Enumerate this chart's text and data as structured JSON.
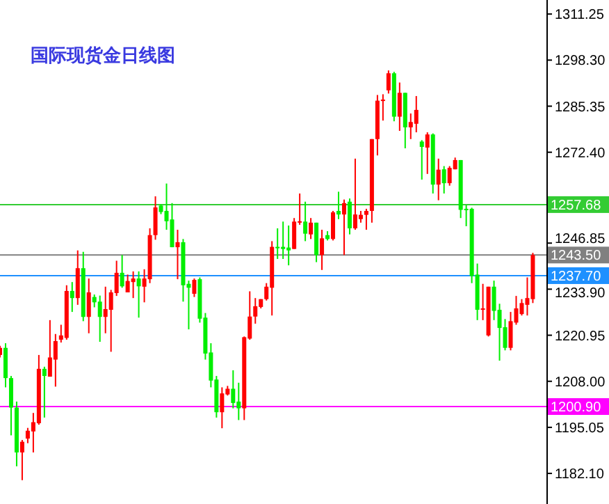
{
  "chart_data": {
    "type": "candlestick",
    "title": "国际现货金日线图",
    "categories": [
      null,
      null,
      null,
      null,
      null,
      null,
      null,
      null,
      null,
      null,
      null,
      null,
      null,
      null,
      null,
      null,
      null,
      null,
      null,
      null,
      null,
      null,
      null,
      null,
      null,
      null,
      null,
      null,
      null,
      null,
      null,
      null,
      null,
      null,
      null,
      null,
      null,
      null,
      null,
      null,
      null,
      null,
      null,
      null,
      null,
      null,
      null,
      null,
      null,
      null,
      null,
      null,
      null,
      null,
      null,
      null,
      null,
      null,
      null,
      null,
      null,
      null,
      null,
      null,
      null,
      null,
      null,
      null,
      null,
      null,
      null,
      null,
      null,
      null,
      null,
      null,
      null,
      null,
      null,
      null,
      null,
      null,
      null,
      null,
      null,
      null,
      null,
      null,
      null,
      null,
      null,
      null,
      null,
      null,
      null,
      null,
      null
    ],
    "ohlc": [
      [
        1215.4,
        1218.0,
        1214.7,
        1217.4
      ],
      [
        1217.4,
        1218.7,
        1206.3,
        1208.9
      ],
      [
        1208.9,
        1209.5,
        1192.8,
        1200.6
      ],
      [
        1200.6,
        1202.3,
        1184.1,
        1188.0
      ],
      [
        1188.0,
        1191.5,
        1180.2,
        1191.0
      ],
      [
        1191.9,
        1194.9,
        1190.6,
        1194.1
      ],
      [
        1193.9,
        1199.1,
        1188.0,
        1196.5
      ],
      [
        1196.2,
        1215.4,
        1195.8,
        1211.5
      ],
      [
        1211.5,
        1212.1,
        1197.8,
        1209.5
      ],
      [
        1209.3,
        1225.2,
        1209.3,
        1214.7
      ],
      [
        1214.1,
        1221.3,
        1206.5,
        1219.3
      ],
      [
        1219.7,
        1223.9,
        1218.9,
        1220.9
      ],
      [
        1220.2,
        1235.0,
        1219.7,
        1233.4
      ],
      [
        1233.4,
        1235.9,
        1227.5,
        1231.4
      ],
      [
        1231.4,
        1244.8,
        1229.5,
        1239.8
      ],
      [
        1239.8,
        1244.4,
        1224.9,
        1226.1
      ],
      [
        1226.1,
        1236.9,
        1221.5,
        1233.0
      ],
      [
        1231.7,
        1232.4,
        1228.8,
        1230.2
      ],
      [
        1230.4,
        1232.1,
        1219.1,
        1226.1
      ],
      [
        1226.1,
        1234.6,
        1221.5,
        1228.3
      ],
      [
        1228.1,
        1233.7,
        1216.3,
        1233.0
      ],
      [
        1232.8,
        1241.9,
        1232.0,
        1238.5
      ],
      [
        1238.5,
        1243.5,
        1234.3,
        1234.7
      ],
      [
        1233.0,
        1238.0,
        1233.0,
        1236.2
      ],
      [
        1235.9,
        1238.9,
        1231.4,
        1236.9
      ],
      [
        1236.9,
        1238.9,
        1225.9,
        1234.7
      ],
      [
        1234.6,
        1239.5,
        1230.2,
        1236.9
      ],
      [
        1236.7,
        1251.0,
        1235.6,
        1249.1
      ],
      [
        1249.1,
        1260.0,
        1247.8,
        1256.9
      ],
      [
        1257.4,
        1257.8,
        1255.0,
        1255.6
      ],
      [
        1255.9,
        1263.6,
        1250.6,
        1253.0
      ],
      [
        1253.5,
        1258.1,
        1245.7,
        1245.7
      ],
      [
        1245.7,
        1250.6,
        1236.7,
        1247.1
      ],
      [
        1247.1,
        1248.0,
        1230.4,
        1235.0
      ],
      [
        1235.4,
        1236.3,
        1222.6,
        1234.3
      ],
      [
        1232.6,
        1236.9,
        1231.7,
        1236.5
      ],
      [
        1236.7,
        1237.2,
        1224.5,
        1225.6
      ],
      [
        1225.9,
        1227.2,
        1214.1,
        1215.8
      ],
      [
        1216.1,
        1218.7,
        1206.3,
        1208.2
      ],
      [
        1208.5,
        1209.5,
        1197.8,
        1199.3
      ],
      [
        1199.3,
        1206.3,
        1194.8,
        1204.6
      ],
      [
        1204.3,
        1206.7,
        1204.0,
        1205.9
      ],
      [
        1205.9,
        1211.1,
        1200.4,
        1201.9
      ],
      [
        1202.3,
        1207.6,
        1197.1,
        1200.4
      ],
      [
        1200.4,
        1220.6,
        1197.1,
        1220.4
      ],
      [
        1220.0,
        1233.3,
        1219.7,
        1226.2
      ],
      [
        1226.2,
        1231.4,
        1224.2,
        1229.1
      ],
      [
        1228.9,
        1231.1,
        1228.5,
        1231.1
      ],
      [
        1231.1,
        1235.6,
        1230.7,
        1234.6
      ],
      [
        1234.3,
        1247.4,
        1226.5,
        1245.8
      ],
      [
        1245.8,
        1251.0,
        1242.4,
        1245.4
      ],
      [
        1245.8,
        1252.9,
        1242.4,
        1245.2
      ],
      [
        1245.6,
        1251.8,
        1240.6,
        1244.8
      ],
      [
        1245.2,
        1253.9,
        1245.2,
        1252.9
      ],
      [
        1252.6,
        1260.8,
        1252.0,
        1253.0
      ],
      [
        1252.9,
        1258.5,
        1247.4,
        1249.5
      ],
      [
        1249.3,
        1253.9,
        1248.0,
        1252.6
      ],
      [
        1252.6,
        1252.6,
        1241.5,
        1243.5
      ],
      [
        1243.5,
        1250.6,
        1239.3,
        1248.2
      ],
      [
        1249.1,
        1250.2,
        1247.6,
        1248.0
      ],
      [
        1248.0,
        1255.9,
        1247.6,
        1255.5
      ],
      [
        1255.9,
        1261.3,
        1253.6,
        1254.9
      ],
      [
        1254.9,
        1259.1,
        1243.5,
        1258.1
      ],
      [
        1258.5,
        1259.4,
        1249.3,
        1251.0
      ],
      [
        1251.0,
        1270.6,
        1250.6,
        1254.9
      ],
      [
        1253.6,
        1255.9,
        1252.6,
        1254.8
      ],
      [
        1254.8,
        1256.5,
        1250.6,
        1255.9
      ],
      [
        1255.9,
        1276.1,
        1252.6,
        1276.1
      ],
      [
        1276.1,
        1288.5,
        1271.5,
        1286.9
      ],
      [
        1286.8,
        1288.7,
        1281.3,
        1287.2
      ],
      [
        1289.8,
        1295.4,
        1288.9,
        1294.6
      ],
      [
        1294.6,
        1295.0,
        1281.1,
        1282.4
      ],
      [
        1282.4,
        1292.0,
        1278.4,
        1289.1
      ],
      [
        1289.1,
        1289.1,
        1273.5,
        1279.4
      ],
      [
        1279.4,
        1283.3,
        1276.1,
        1280.9
      ],
      [
        1280.4,
        1288.2,
        1278.0,
        1284.3
      ],
      [
        1275.4,
        1275.8,
        1264.7,
        1273.9
      ],
      [
        1273.7,
        1278.0,
        1266.3,
        1277.4
      ],
      [
        1277.4,
        1277.7,
        1260.8,
        1263.3
      ],
      [
        1263.3,
        1270.6,
        1258.9,
        1267.5
      ],
      [
        1267.6,
        1268.5,
        1260.8,
        1263.7
      ],
      [
        1263.7,
        1268.5,
        1263.0,
        1268.0
      ],
      [
        1267.6,
        1270.9,
        1267.6,
        1270.2
      ],
      [
        1270.2,
        1270.2,
        1253.9,
        1256.2
      ],
      [
        1256.5,
        1257.5,
        1251.6,
        1256.2
      ],
      [
        1256.5,
        1256.8,
        1235.6,
        1237.6
      ],
      [
        1238.0,
        1241.1,
        1225.2,
        1228.1
      ],
      [
        1228.1,
        1235.4,
        1225.2,
        1228.5
      ],
      [
        1220.9,
        1234.6,
        1220.6,
        1234.6
      ],
      [
        1234.6,
        1236.3,
        1225.2,
        1227.8
      ],
      [
        1228.1,
        1229.8,
        1213.8,
        1223.0
      ],
      [
        1223.2,
        1225.5,
        1216.7,
        1217.4
      ],
      [
        1217.4,
        1227.5,
        1216.7,
        1224.9
      ],
      [
        1224.5,
        1232.0,
        1223.9,
        1228.5
      ],
      [
        1226.9,
        1231.1,
        1226.5,
        1230.0
      ],
      [
        1229.5,
        1237.2,
        1226.5,
        1231.4
      ],
      [
        1231.1,
        1244.1,
        1230.0,
        1243.5
      ]
    ],
    "ylim": [
      1173.5,
      1315.2
    ],
    "yticks": [
      1311.25,
      {
        "value": 1298.3,
        "label": "1298.30"
      },
      1285.35,
      {
        "value": 1272.4,
        "label": "1272.40"
      },
      1246.85,
      {
        "value": 1233.9,
        "label": "1233.90"
      },
      1220.95,
      {
        "value": 1208.0,
        "label": "1208.00"
      },
      1195.05,
      {
        "value": 1182.1,
        "label": "1182.10"
      }
    ],
    "ref_lines": [
      {
        "axis": "y",
        "value": 1257.68,
        "label": "1257.68",
        "color": "#33cc33"
      },
      {
        "axis": "y",
        "value": 1243.5,
        "label": "1243.50",
        "color": "#808080"
      },
      {
        "axis": "y",
        "value": 1237.7,
        "label": "1237.70",
        "color": "#1e90ff"
      },
      {
        "axis": "y",
        "value": 1200.9,
        "label": "1200.90",
        "color": "#ff00ff"
      }
    ],
    "tick_labels": "y"
  }
}
